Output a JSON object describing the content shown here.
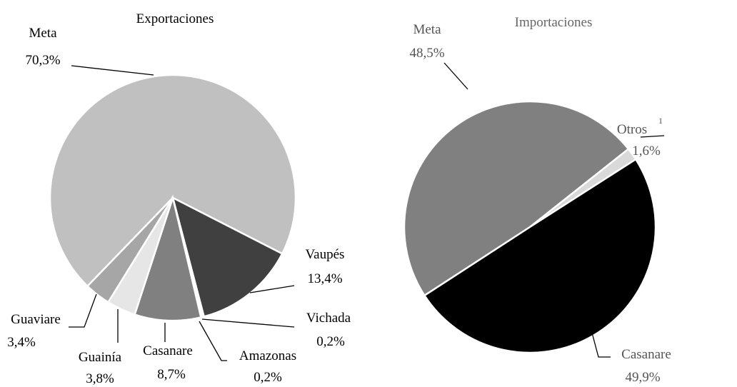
{
  "chart_data": [
    {
      "type": "pie",
      "title": "Exportaciones",
      "categories": [
        "Meta",
        "Vaupés",
        "Vichada",
        "Amazonas",
        "Casanare",
        "Guainía",
        "Guaviare"
      ],
      "values": [
        70.3,
        13.4,
        0.2,
        0.2,
        8.7,
        3.8,
        3.4
      ],
      "value_labels": [
        "70,3%",
        "13,4%",
        "0,2%",
        "0,2%",
        "8,7%",
        "3,8%",
        "3,4%"
      ],
      "colors": [
        "#c0c0c0",
        "#404040",
        "#f2f2f2",
        "#d9d9d9",
        "#808080",
        "#e6e6e6",
        "#a6a6a6"
      ]
    },
    {
      "type": "pie",
      "title": "Importaciones",
      "categories": [
        "Meta",
        "Otros",
        "Casanare"
      ],
      "category_notes": [
        null,
        "1",
        null
      ],
      "values": [
        48.5,
        1.6,
        49.9
      ],
      "value_labels": [
        "48,5%",
        "1,6%",
        "49,9%"
      ],
      "colors": [
        "#808080",
        "#d9d9d9",
        "#000000"
      ]
    }
  ]
}
